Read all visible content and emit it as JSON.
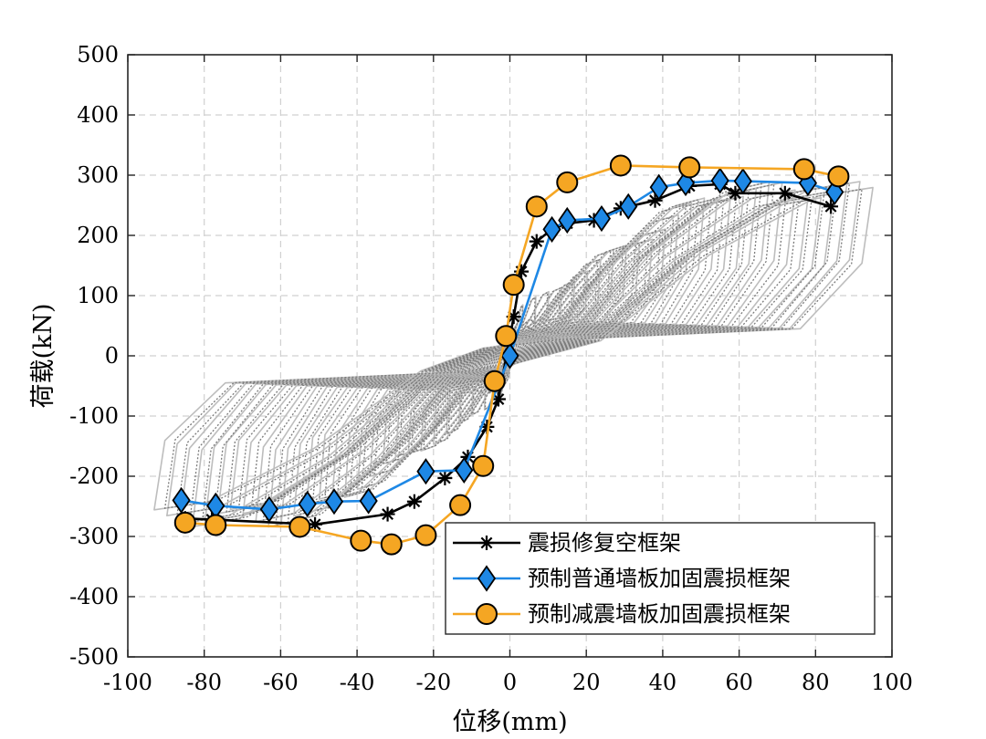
{
  "chart_data": {
    "type": "line",
    "title": "",
    "xlabel": "位移(mm)",
    "ylabel": "荷载(kN)",
    "xlim": [
      -100,
      100
    ],
    "ylim": [
      -500,
      500
    ],
    "xticks": [
      -100,
      -80,
      -60,
      -40,
      -20,
      0,
      20,
      40,
      60,
      80,
      100
    ],
    "yticks": [
      -500,
      -400,
      -300,
      -200,
      -100,
      0,
      100,
      200,
      300,
      400,
      500
    ],
    "xtick_labels": [
      "-100",
      "-80",
      "-60",
      "-40",
      "-20",
      "0",
      "20",
      "40",
      "60",
      "80",
      "100"
    ],
    "ytick_labels": [
      "-500",
      "-400",
      "-300",
      "-200",
      "-100",
      "0",
      "100",
      "200",
      "300",
      "400",
      "500"
    ],
    "grid": true,
    "legend_position": "bottom-right",
    "background_hysteresis": {
      "description_color_light": "#bdbdbd",
      "description_color_dark": "#7a7a7a",
      "max_displacement": 95,
      "max_load_positive": 290,
      "max_load_negative": -290
    },
    "series": [
      {
        "name": "震损修复空框架",
        "color": "#000000",
        "marker": "asterisk",
        "x": [
          -85,
          -78,
          -51,
          -32,
          -25,
          -17,
          -11,
          -6,
          -3,
          1,
          3,
          7,
          11,
          15,
          22,
          29,
          38,
          47,
          55,
          59,
          72,
          84
        ],
        "y": [
          -270,
          -272,
          -280,
          -263,
          -242,
          -203,
          -168,
          -118,
          -72,
          65,
          140,
          190,
          210,
          220,
          225,
          245,
          258,
          282,
          285,
          270,
          270,
          248
        ]
      },
      {
        "name": "预制普通墙板加固震损框架",
        "color": "#1e88e5",
        "marker": "diamond",
        "x": [
          -86,
          -77,
          -63,
          -53,
          -46,
          -37,
          -22,
          -12,
          0,
          11,
          15,
          24,
          31,
          39,
          46,
          55,
          61,
          78,
          85
        ],
        "y": [
          -240,
          -249,
          -255,
          -246,
          -242,
          -241,
          -192,
          -190,
          0,
          210,
          225,
          228,
          248,
          280,
          287,
          291,
          290,
          287,
          272
        ]
      },
      {
        "name": "预制减震墙板加固震损框架",
        "color": "#f5a623",
        "marker": "circle",
        "x": [
          -85,
          -77,
          -55,
          -39,
          -31,
          -22,
          -13,
          -7,
          -4,
          -1,
          1,
          7,
          15,
          29,
          47,
          77,
          86
        ],
        "y": [
          -277,
          -281,
          -284,
          -307,
          -313,
          -298,
          -248,
          -183,
          -42,
          33,
          118,
          248,
          288,
          316,
          313,
          310,
          298
        ]
      }
    ]
  }
}
